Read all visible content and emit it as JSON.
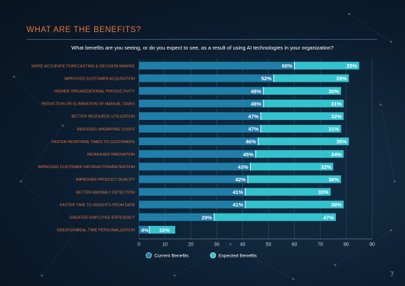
{
  "page": {
    "title": "WHAT ARE THE BENEFITS?",
    "number": "7"
  },
  "chart_data": {
    "type": "bar",
    "orientation": "horizontal",
    "stacked": true,
    "title": "What benefits are you seeing, or do you expect to see, as a result of using AI technologies in your organization?",
    "categories": [
      "MORE ACCURATE FORECASTING & DECISION MAKING",
      "IMPROVED CUSTOMER ACQUISITION",
      "HIGHER ORGANIZATIONAL PRODUCTIVITY",
      "REDUCTION OR ELIMINATION OF MANUAL TASKS",
      "BETTER RESOURCE UTILIZATION",
      "REDUCED OPERATING COSTS",
      "FASTER RESPONSE TIMES TO CUSTOMERS",
      "INCREASED INNOVATION",
      "IMPROVED CUSTOMER SATISFACTION/RETENTION",
      "IMPROVED PRODUCT QUALITY",
      "BETTER ANOMALY DETECTION",
      "FASTER TIME TO INSIGHTS FROM DATA",
      "GREATER EMPLOYEE EFFICIENCY",
      "GREATER REAL-TIME PERSONALIZATION"
    ],
    "series": [
      {
        "name": "Current Benefits",
        "color": "#1f7fa8",
        "values": [
          60,
          52,
          48,
          48,
          47,
          47,
          46,
          45,
          43,
          42,
          41,
          41,
          29,
          4
        ]
      },
      {
        "name": "Expected Benefits",
        "color": "#33c3cf",
        "values": [
          25,
          29,
          30,
          31,
          32,
          31,
          35,
          34,
          32,
          36,
          33,
          38,
          47,
          10
        ]
      }
    ],
    "xlim": [
      0,
      90
    ],
    "xticks": [
      0,
      10,
      20,
      30,
      40,
      50,
      60,
      70,
      80,
      90
    ],
    "legend_position": "bottom",
    "grid": true
  }
}
